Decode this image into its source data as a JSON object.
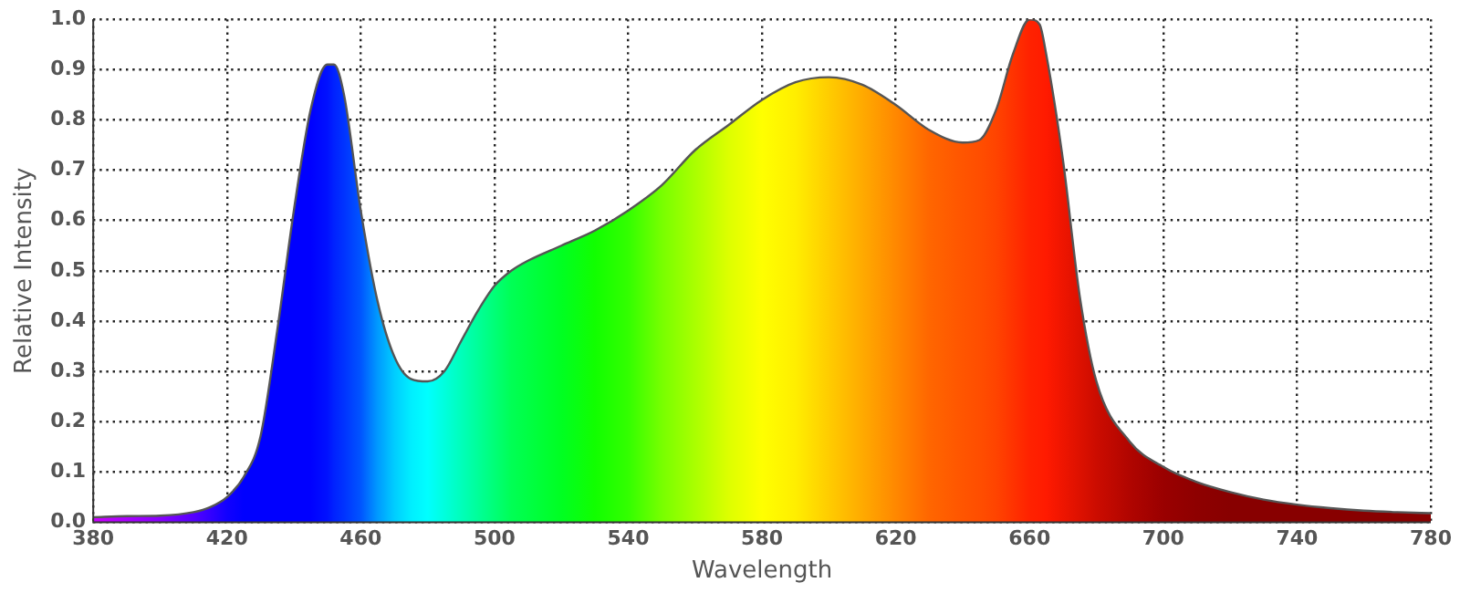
{
  "chart_data": {
    "type": "area",
    "xlabel": "Wavelength",
    "ylabel": "Relative Intensity",
    "x": [
      380,
      390,
      400,
      410,
      415,
      420,
      425,
      430,
      435,
      440,
      445,
      450,
      452,
      455,
      460,
      465,
      470,
      475,
      480,
      485,
      490,
      495,
      500,
      505,
      510,
      520,
      530,
      540,
      550,
      560,
      570,
      580,
      590,
      600,
      610,
      620,
      630,
      640,
      645,
      650,
      655,
      660,
      663,
      665,
      670,
      675,
      680,
      690,
      700,
      710,
      720,
      730,
      740,
      750,
      760,
      770,
      780
    ],
    "series": [
      {
        "color": "#555555",
        "values": [
          0.01,
          0.012,
          0.013,
          0.02,
          0.03,
          0.05,
          0.09,
          0.17,
          0.38,
          0.62,
          0.82,
          0.91,
          0.91,
          0.85,
          0.62,
          0.44,
          0.33,
          0.285,
          0.28,
          0.3,
          0.36,
          0.42,
          0.47,
          0.5,
          0.52,
          0.55,
          0.58,
          0.62,
          0.67,
          0.74,
          0.79,
          0.84,
          0.875,
          0.885,
          0.87,
          0.83,
          0.78,
          0.755,
          0.76,
          0.82,
          0.93,
          1.0,
          0.99,
          0.93,
          0.72,
          0.45,
          0.28,
          0.16,
          0.11,
          0.08,
          0.06,
          0.045,
          0.035,
          0.028,
          0.023,
          0.02,
          0.018
        ],
        "colors": [
          "#cc00ff",
          "#aa00ff",
          "#8800ff",
          "#5500ff",
          "#3300ff",
          "#1100ff",
          "#0000ff",
          "#0000ff",
          "#0000ff",
          "#0000ff",
          "#0000ff",
          "#0011ff",
          "#0022ff",
          "#0033ff",
          "#0055ff",
          "#0099ff",
          "#00ccff",
          "#00eeff",
          "#00ffff",
          "#00ffdd",
          "#00ffbb",
          "#00ff99",
          "#00ff77",
          "#00ff55",
          "#00ff44",
          "#00ff22",
          "#11ff00",
          "#33ff00",
          "#77ff00",
          "#aaff00",
          "#ddff00",
          "#ffff00",
          "#ffee00",
          "#ffcc00",
          "#ffaa00",
          "#ff8800",
          "#ff6600",
          "#ff5500",
          "#ff4e00",
          "#ff4400",
          "#ff3300",
          "#ff2200",
          "#ff1e00",
          "#ff1a00",
          "#ee1500",
          "#dd1100",
          "#cc0c00",
          "#b00500",
          "#9a0000",
          "#8e0000",
          "#880000",
          "#880000",
          "#880000",
          "#880000",
          "#880000",
          "#880000",
          "#880000"
        ]
      }
    ],
    "xlim": [
      380,
      780
    ],
    "xticks": [
      380,
      420,
      460,
      500,
      540,
      580,
      620,
      660,
      700,
      740,
      780
    ],
    "ylim": [
      0,
      1
    ],
    "yticks": [
      {
        "value": 0,
        "label": "0.0"
      },
      {
        "value": 0.1,
        "label": "0.1"
      },
      {
        "value": 0.2,
        "label": "0.2"
      },
      {
        "value": 0.3,
        "label": "0.3"
      },
      {
        "value": 0.4,
        "label": "0.4"
      },
      {
        "value": 0.5,
        "label": "0.5"
      },
      {
        "value": 0.6,
        "label": "0.6"
      },
      {
        "value": 0.7,
        "label": "0.7"
      },
      {
        "value": 0.8,
        "label": "0.8"
      },
      {
        "value": 0.9,
        "label": "0.9"
      },
      {
        "value": 1,
        "label": "1.0"
      }
    ],
    "grid": true,
    "legend": false,
    "marker": "none",
    "line_style": "solid"
  }
}
